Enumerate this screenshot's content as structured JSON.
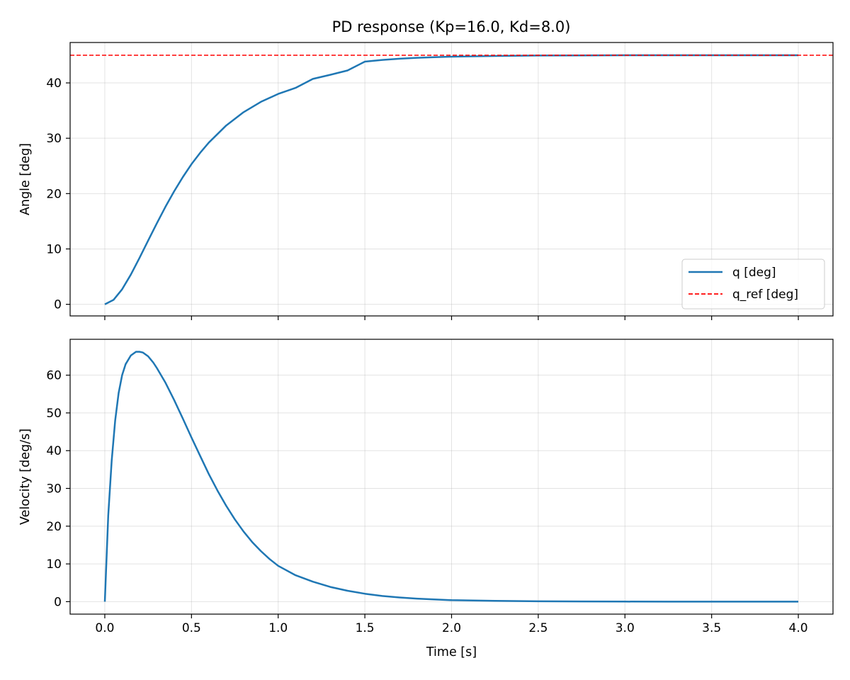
{
  "figure": {
    "title": "PD response (Kp=16.0, Kd=8.0)"
  },
  "chart_data": [
    {
      "type": "line",
      "ylabel": "Angle [deg]",
      "xlabel": "",
      "xlim": [
        -0.2,
        4.2
      ],
      "ylim": [
        -2.1,
        47.3
      ],
      "xticks": [
        0.0,
        0.5,
        1.0,
        1.5,
        2.0,
        2.5,
        3.0,
        3.5,
        4.0
      ],
      "yticks": [
        0,
        10,
        20,
        30,
        40
      ],
      "xtick_labels_visible": false,
      "grid": true,
      "legend_position": "lower-right",
      "series": [
        {
          "name": "q [deg]",
          "color": "#1f77b4",
          "style": "solid",
          "x": [
            0.0,
            0.05,
            0.1,
            0.15,
            0.2,
            0.25,
            0.3,
            0.35,
            0.4,
            0.45,
            0.5,
            0.55,
            0.6,
            0.7,
            0.8,
            0.9,
            1.0,
            1.1,
            1.2,
            1.3,
            1.4,
            1.5,
            1.6,
            1.7,
            1.8,
            1.9,
            2.0,
            2.25,
            2.5,
            2.75,
            3.0,
            3.25,
            3.5,
            3.75,
            4.0
          ],
          "y": [
            0.0,
            0.79,
            2.71,
            5.36,
            8.37,
            11.51,
            14.63,
            17.62,
            20.42,
            22.98,
            25.31,
            27.38,
            29.22,
            32.3,
            34.71,
            36.57,
            38.01,
            39.1,
            40.72,
            41.47,
            42.25,
            43.85,
            44.15,
            44.37,
            44.53,
            44.65,
            44.74,
            44.87,
            44.94,
            44.97,
            44.99,
            45.0,
            45.0,
            45.0,
            45.0
          ]
        },
        {
          "name": "q_ref [deg]",
          "color": "#ff0000",
          "style": "dashed",
          "x": [
            -0.2,
            4.2
          ],
          "y": [
            45.0,
            45.0
          ]
        }
      ]
    },
    {
      "type": "line",
      "ylabel": "Velocity [deg/s]",
      "xlabel": "Time [s]",
      "xlim": [
        -0.2,
        4.2
      ],
      "ylim": [
        -3.3,
        69.5
      ],
      "xticks": [
        0.0,
        0.5,
        1.0,
        1.5,
        2.0,
        2.5,
        3.0,
        3.5,
        4.0
      ],
      "xtick_labels": [
        "0.0",
        "0.5",
        "1.0",
        "1.5",
        "2.0",
        "2.5",
        "3.0",
        "3.5",
        "4.0"
      ],
      "yticks": [
        0,
        10,
        20,
        30,
        40,
        50,
        60
      ],
      "grid": true,
      "series": [
        {
          "name": "",
          "color": "#1f77b4",
          "style": "solid",
          "x": [
            0.0,
            0.02,
            0.04,
            0.06,
            0.08,
            0.1,
            0.12,
            0.15,
            0.18,
            0.2,
            0.22,
            0.25,
            0.28,
            0.3,
            0.35,
            0.4,
            0.45,
            0.5,
            0.55,
            0.6,
            0.65,
            0.7,
            0.75,
            0.8,
            0.85,
            0.9,
            0.95,
            1.0,
            1.1,
            1.2,
            1.3,
            1.4,
            1.5,
            1.6,
            1.7,
            1.8,
            1.9,
            2.0,
            2.25,
            2.5,
            2.75,
            3.0,
            3.25,
            3.5,
            3.75,
            4.0
          ],
          "y": [
            0.0,
            22.8,
            37.4,
            48.0,
            55.3,
            60.0,
            62.9,
            65.2,
            66.2,
            66.2,
            66.0,
            65.0,
            63.3,
            61.9,
            58.0,
            53.4,
            48.5,
            43.5,
            38.6,
            33.8,
            29.4,
            25.4,
            21.8,
            18.6,
            15.8,
            13.4,
            11.3,
            9.5,
            7.0,
            5.3,
            3.9,
            2.9,
            2.1,
            1.5,
            1.1,
            0.8,
            0.6,
            0.4,
            0.2,
            0.1,
            0.05,
            0.02,
            0.01,
            0.0,
            0.0,
            0.0
          ]
        }
      ]
    }
  ]
}
